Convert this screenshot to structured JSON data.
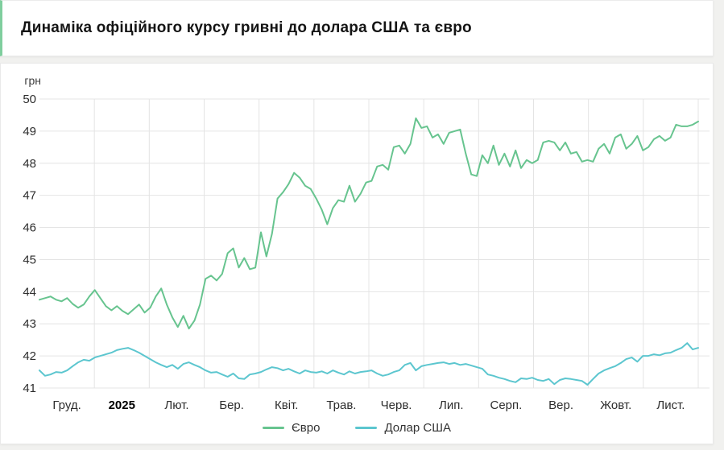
{
  "header": {
    "title": "Динаміка офіційного курсу гривні до долара США та євро"
  },
  "colors": {
    "accent": "#7fce9e",
    "grid": "#e4e4e4",
    "euro_line": "#67c48f",
    "usd_line": "#5cc6cf",
    "tick_text": "#2d2d2d"
  },
  "legend": {
    "items": [
      {
        "key": "euro",
        "label": "Євро",
        "color": "#67c48f"
      },
      {
        "key": "usd",
        "label": "Долар США",
        "color": "#5cc6cf"
      }
    ]
  },
  "chart_data": {
    "type": "line",
    "title": "Динаміка офіційного курсу гривні до долара США та євро",
    "xlabel": "",
    "ylabel": "грн",
    "unit_label": "грн",
    "ylim": [
      41,
      50
    ],
    "yticks": [
      50,
      49,
      48,
      47,
      46,
      45,
      44,
      43,
      42,
      41
    ],
    "x_tick_labels": [
      "Груд.",
      "2025",
      "Лют.",
      "Бер.",
      "Квіт.",
      "Трав.",
      "Черв.",
      "Лип.",
      "Серп.",
      "Вер.",
      "Жовт.",
      "Лист."
    ],
    "grid": true,
    "legend_position": "bottom",
    "series": [
      {
        "key": "euro",
        "name": "Євро",
        "color": "#67c48f",
        "values": [
          43.75,
          43.8,
          43.85,
          43.75,
          43.7,
          43.8,
          43.62,
          43.5,
          43.6,
          43.85,
          44.05,
          43.8,
          43.55,
          43.42,
          43.55,
          43.4,
          43.3,
          43.45,
          43.6,
          43.35,
          43.5,
          43.85,
          44.1,
          43.6,
          43.2,
          42.9,
          43.25,
          42.85,
          43.1,
          43.6,
          44.4,
          44.5,
          44.35,
          44.55,
          45.2,
          45.35,
          44.75,
          45.05,
          44.7,
          44.75,
          45.85,
          45.1,
          45.8,
          46.9,
          47.1,
          47.35,
          47.7,
          47.55,
          47.3,
          47.2,
          46.9,
          46.55,
          46.1,
          46.6,
          46.85,
          46.8,
          47.3,
          46.8,
          47.05,
          47.4,
          47.45,
          47.9,
          47.95,
          47.8,
          48.5,
          48.55,
          48.3,
          48.6,
          49.4,
          49.1,
          49.15,
          48.8,
          48.9,
          48.6,
          48.95,
          49.0,
          49.05,
          48.3,
          47.65,
          47.6,
          48.25,
          48.0,
          48.55,
          47.95,
          48.3,
          47.9,
          48.4,
          47.85,
          48.1,
          48.0,
          48.1,
          48.65,
          48.7,
          48.65,
          48.4,
          48.65,
          48.3,
          48.35,
          48.05,
          48.1,
          48.05,
          48.45,
          48.6,
          48.3,
          48.8,
          48.9,
          48.45,
          48.6,
          48.85,
          48.4,
          48.5,
          48.75,
          48.85,
          48.7,
          48.8,
          49.2,
          49.15,
          49.15,
          49.2,
          49.3
        ]
      },
      {
        "key": "usd",
        "name": "Долар США",
        "color": "#5cc6cf",
        "values": [
          41.55,
          41.38,
          41.42,
          41.5,
          41.48,
          41.55,
          41.68,
          41.8,
          41.88,
          41.85,
          41.95,
          42.0,
          42.05,
          42.1,
          42.18,
          42.22,
          42.25,
          42.18,
          42.1,
          42.0,
          41.9,
          41.8,
          41.72,
          41.65,
          41.72,
          41.6,
          41.75,
          41.8,
          41.72,
          41.65,
          41.55,
          41.48,
          41.5,
          41.42,
          41.35,
          41.45,
          41.3,
          41.28,
          41.42,
          41.45,
          41.5,
          41.58,
          41.65,
          41.62,
          41.55,
          41.6,
          41.52,
          41.45,
          41.55,
          41.5,
          41.48,
          41.52,
          41.45,
          41.55,
          41.48,
          41.42,
          41.52,
          41.45,
          41.5,
          41.52,
          41.55,
          41.45,
          41.38,
          41.42,
          41.5,
          41.55,
          41.72,
          41.78,
          41.55,
          41.68,
          41.72,
          41.75,
          41.78,
          41.8,
          41.75,
          41.78,
          41.72,
          41.75,
          41.7,
          41.65,
          41.6,
          41.42,
          41.38,
          41.32,
          41.28,
          41.22,
          41.18,
          41.3,
          41.28,
          41.32,
          41.25,
          41.22,
          41.28,
          41.12,
          41.25,
          41.3,
          41.28,
          41.25,
          41.22,
          41.1,
          41.28,
          41.45,
          41.55,
          41.62,
          41.68,
          41.78,
          41.9,
          41.95,
          41.82,
          42.0,
          42.0,
          42.05,
          42.02,
          42.08,
          42.1,
          42.18,
          42.25,
          42.4,
          42.2,
          42.25
        ]
      }
    ]
  }
}
